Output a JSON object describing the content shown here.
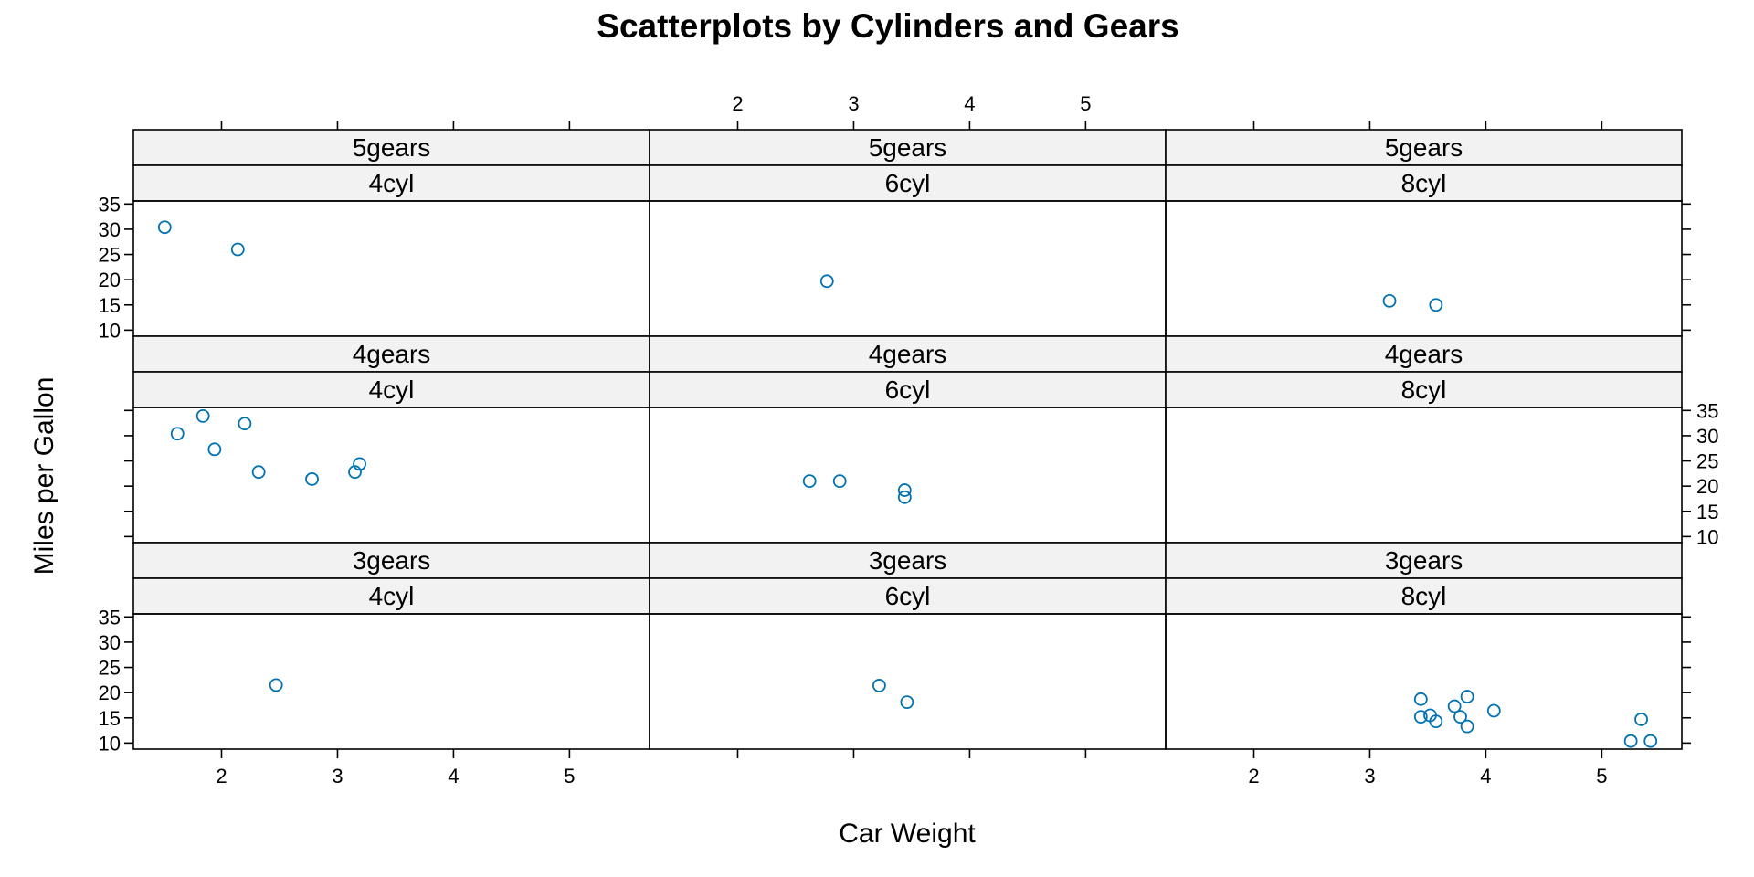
{
  "chart_data": {
    "type": "scatter",
    "title": "Scatterplots by Cylinders and Gears",
    "xlabel": "Car Weight",
    "ylabel": "Miles per Gallon",
    "xlim": [
      1.24,
      5.69
    ],
    "ylim": [
      8.8,
      35.6
    ],
    "x_ticks": [
      2,
      3,
      4,
      5
    ],
    "y_ticks": [
      10,
      15,
      20,
      25,
      30,
      35
    ],
    "point_color": "#0072B2",
    "strip_color": "#f2f2f2",
    "columns": [
      "4cyl",
      "6cyl",
      "8cyl"
    ],
    "rows": [
      "5gears",
      "4gears",
      "3gears"
    ],
    "panels": [
      {
        "gear": "5gears",
        "cyl": "4cyl",
        "points": [
          [
            1.51,
            30.4
          ],
          [
            2.14,
            26.0
          ]
        ]
      },
      {
        "gear": "5gears",
        "cyl": "6cyl",
        "points": [
          [
            2.77,
            19.7
          ]
        ]
      },
      {
        "gear": "5gears",
        "cyl": "8cyl",
        "points": [
          [
            3.17,
            15.8
          ],
          [
            3.57,
            15.0
          ]
        ]
      },
      {
        "gear": "4gears",
        "cyl": "4cyl",
        "points": [
          [
            1.62,
            30.4
          ],
          [
            1.84,
            33.9
          ],
          [
            1.94,
            27.3
          ],
          [
            2.2,
            32.4
          ],
          [
            2.32,
            22.8
          ],
          [
            2.78,
            21.4
          ],
          [
            3.15,
            22.8
          ],
          [
            3.19,
            24.4
          ]
        ]
      },
      {
        "gear": "4gears",
        "cyl": "6cyl",
        "points": [
          [
            2.62,
            21.0
          ],
          [
            2.88,
            21.0
          ],
          [
            3.44,
            19.2
          ],
          [
            3.44,
            17.8
          ]
        ]
      },
      {
        "gear": "4gears",
        "cyl": "8cyl",
        "points": []
      },
      {
        "gear": "3gears",
        "cyl": "4cyl",
        "points": [
          [
            2.47,
            21.5
          ]
        ]
      },
      {
        "gear": "3gears",
        "cyl": "6cyl",
        "points": [
          [
            3.22,
            21.4
          ],
          [
            3.46,
            18.1
          ]
        ]
      },
      {
        "gear": "3gears",
        "cyl": "8cyl",
        "points": [
          [
            3.44,
            18.7
          ],
          [
            3.44,
            15.2
          ],
          [
            3.52,
            15.5
          ],
          [
            3.57,
            14.3
          ],
          [
            3.73,
            17.3
          ],
          [
            3.78,
            15.2
          ],
          [
            3.84,
            19.2
          ],
          [
            3.84,
            13.3
          ],
          [
            4.07,
            16.4
          ],
          [
            5.25,
            10.4
          ],
          [
            5.34,
            14.7
          ],
          [
            5.42,
            10.4
          ]
        ]
      }
    ]
  }
}
